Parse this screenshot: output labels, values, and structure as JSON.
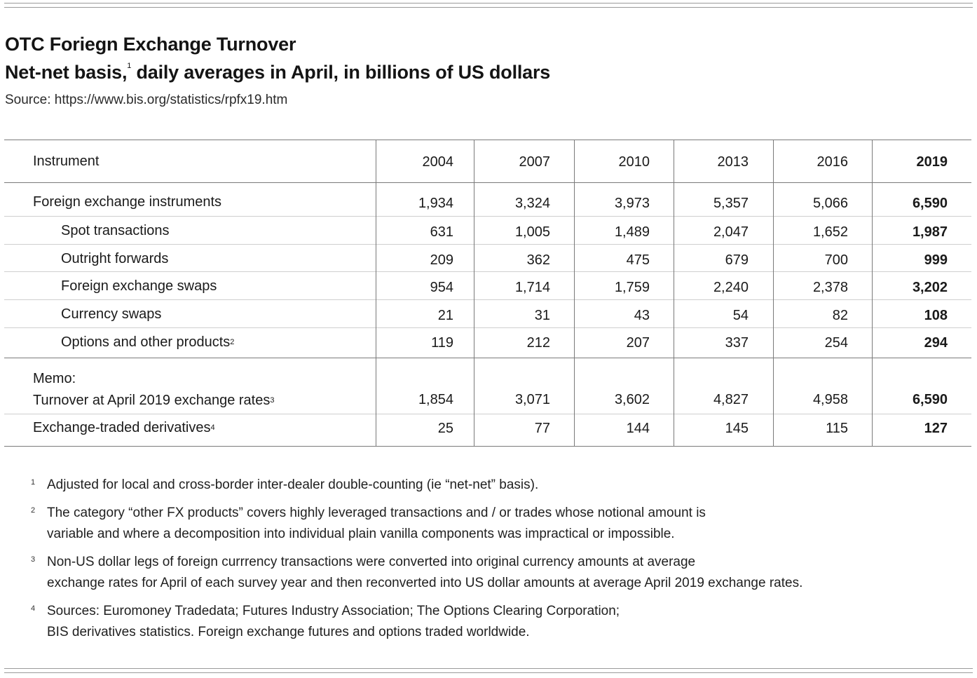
{
  "title": "OTC Foriegn Exchange Turnover",
  "subtitle": {
    "part1": "Net-net basis,",
    "sup": "1",
    "part2": " daily averages in April, in billions of US dollars"
  },
  "source": "Source: https://www.bis.org/statistics/rpfx19.htm",
  "table": {
    "header": {
      "instrument": "Instrument",
      "years": [
        "2004",
        "2007",
        "2010",
        "2013",
        "2016",
        "2019"
      ]
    },
    "rows": [
      {
        "label": "Foreign exchange instruments",
        "sup": "",
        "values": [
          "1,934",
          "3,324",
          "3,973",
          "5,357",
          "5,066",
          "6,590"
        ]
      },
      {
        "label": "Spot transactions",
        "sup": "",
        "values": [
          "631",
          "1,005",
          "1,489",
          "2,047",
          "1,652",
          "1,987"
        ]
      },
      {
        "label": "Outright forwards",
        "sup": "",
        "values": [
          "209",
          "362",
          "475",
          "679",
          "700",
          "999"
        ]
      },
      {
        "label": "Foreign exchange swaps",
        "sup": "",
        "values": [
          "954",
          "1,714",
          "1,759",
          "2,240",
          "2,378",
          "3,202"
        ]
      },
      {
        "label": "Currency swaps",
        "sup": "",
        "values": [
          "21",
          "31",
          "43",
          "54",
          "82",
          "108"
        ]
      },
      {
        "label": "Options and other products",
        "sup": "2",
        "values": [
          "119",
          "212",
          "207",
          "337",
          "254",
          "294"
        ]
      }
    ],
    "memo": {
      "label": "Memo:",
      "row": {
        "label": "Turnover at April 2019 exchange rates",
        "sup": "3",
        "values": [
          "1,854",
          "3,071",
          "3,602",
          "4,827",
          "4,958",
          "6,590"
        ]
      }
    },
    "etd": {
      "label": "Exchange-traded derivatives",
      "sup": "4",
      "values": [
        "25",
        "77",
        "144",
        "145",
        "115",
        "127"
      ]
    }
  },
  "footnotes": [
    {
      "mark": "1",
      "lines": [
        "Adjusted for local and cross-border inter-dealer double-counting (ie “net-net” basis)."
      ]
    },
    {
      "mark": "2",
      "lines": [
        "The category “other FX products” covers highly leveraged transactions and / or trades whose notional amount is",
        "variable and where a decomposition into individual plain vanilla components was impractical or impossible."
      ]
    },
    {
      "mark": "3",
      "lines": [
        "Non-US dollar legs of foreign currrency transactions were converted into original currency amounts at average",
        "exchange rates for April of each survey year and then reconverted into US dollar amounts at average April 2019 exchange rates."
      ]
    },
    {
      "mark": "4",
      "lines": [
        "Sources: Euromoney Tradedata; Futures Industry Association; The Options Clearing Corporation;",
        "BIS derivatives statistics. Foreign exchange futures and options traded worldwide."
      ]
    }
  ]
}
